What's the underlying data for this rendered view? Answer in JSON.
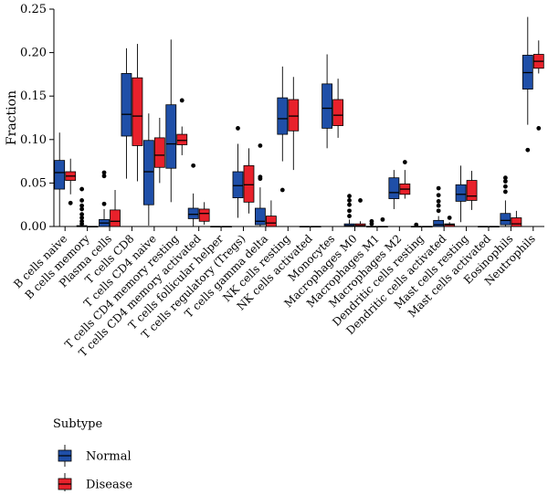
{
  "chart_data": {
    "type": "box",
    "ylabel": "Fraction",
    "xlabel": "",
    "ylim": [
      0,
      0.25
    ],
    "yticks": [
      0.0,
      0.05,
      0.1,
      0.15,
      0.2,
      0.25
    ],
    "ytick_labels": [
      "0.00",
      "0.05",
      "0.10",
      "0.15",
      "0.20",
      "0.25"
    ],
    "grid": false,
    "legend_position": "bottom-left",
    "categories": [
      "B cells naive",
      "B cells memory",
      "Plasma cells",
      "T cells CD8",
      "T cells CD4 naive",
      "T cells CD4 memory resting",
      "T cells CD4 memory activated",
      "T cells follicular helper",
      "T cells regulatory (Tregs)",
      "T cells gamma delta",
      "NK cells resting",
      "NK cells activated",
      "Monocytes",
      "Macrophages M0",
      "Macrophages M1",
      "Macrophages M2",
      "Dendritic cells resting",
      "Dendritic cells activated",
      "Mast cells resting",
      "Mast cells activated",
      "Eosinophils",
      "Neutrophils"
    ],
    "legend": {
      "title": "Subtype"
    },
    "series": [
      {
        "name": "Normal",
        "color": "#1f4fa8",
        "boxes": [
          {
            "min": 0.0,
            "q1": 0.043,
            "median": 0.062,
            "q3": 0.076,
            "max": 0.108,
            "outliers": []
          },
          {
            "min": 0.0,
            "q1": 0.0,
            "median": 0.0,
            "q3": 0.001,
            "max": 0.002,
            "outliers": [
              0.003,
              0.006,
              0.01,
              0.014,
              0.02,
              0.024,
              0.03,
              0.043
            ]
          },
          {
            "min": 0.0,
            "q1": 0.0,
            "median": 0.004,
            "q3": 0.008,
            "max": 0.02,
            "outliers": [
              0.026,
              0.058,
              0.062
            ]
          },
          {
            "min": 0.055,
            "q1": 0.104,
            "median": 0.129,
            "q3": 0.176,
            "max": 0.205,
            "outliers": []
          },
          {
            "min": 0.001,
            "q1": 0.025,
            "median": 0.063,
            "q3": 0.099,
            "max": 0.13,
            "outliers": []
          },
          {
            "min": 0.028,
            "q1": 0.067,
            "median": 0.095,
            "q3": 0.14,
            "max": 0.215,
            "outliers": []
          },
          {
            "min": 0.0,
            "q1": 0.009,
            "median": 0.014,
            "q3": 0.021,
            "max": 0.038,
            "outliers": [
              0.07
            ]
          },
          {
            "min": 0.0,
            "q1": 0.0,
            "median": 0.0,
            "q3": 0.0,
            "max": 0.0,
            "outliers": []
          },
          {
            "min": 0.01,
            "q1": 0.033,
            "median": 0.047,
            "q3": 0.063,
            "max": 0.095,
            "outliers": [
              0.113
            ]
          },
          {
            "min": 0.0,
            "q1": 0.002,
            "median": 0.006,
            "q3": 0.021,
            "max": 0.045,
            "outliers": [
              0.055,
              0.057,
              0.093
            ]
          },
          {
            "min": 0.075,
            "q1": 0.106,
            "median": 0.124,
            "q3": 0.148,
            "max": 0.184,
            "outliers": [
              0.042
            ]
          },
          {
            "min": 0.0,
            "q1": 0.0,
            "median": 0.0,
            "q3": 0.0,
            "max": 0.0,
            "outliers": []
          },
          {
            "min": 0.09,
            "q1": 0.113,
            "median": 0.136,
            "q3": 0.164,
            "max": 0.198,
            "outliers": []
          },
          {
            "min": 0.0,
            "q1": 0.0,
            "median": 0.001,
            "q3": 0.003,
            "max": 0.008,
            "outliers": [
              0.012,
              0.018,
              0.025,
              0.03,
              0.035
            ]
          },
          {
            "min": 0.0,
            "q1": 0.0,
            "median": 0.0,
            "q3": 0.0,
            "max": 0.0,
            "outliers": [
              0.003,
              0.006
            ]
          },
          {
            "min": 0.02,
            "q1": 0.032,
            "median": 0.039,
            "q3": 0.056,
            "max": 0.065,
            "outliers": []
          },
          {
            "min": 0.0,
            "q1": 0.0,
            "median": 0.0,
            "q3": 0.0,
            "max": 0.0,
            "outliers": [
              0.002
            ]
          },
          {
            "min": 0.0,
            "q1": 0.0,
            "median": 0.002,
            "q3": 0.007,
            "max": 0.012,
            "outliers": [
              0.018,
              0.024,
              0.029,
              0.036,
              0.044
            ]
          },
          {
            "min": 0.005,
            "q1": 0.029,
            "median": 0.037,
            "q3": 0.048,
            "max": 0.07,
            "outliers": []
          },
          {
            "min": 0.0,
            "q1": 0.0,
            "median": 0.0,
            "q3": 0.0,
            "max": 0.0,
            "outliers": []
          },
          {
            "min": 0.0,
            "q1": 0.002,
            "median": 0.007,
            "q3": 0.015,
            "max": 0.03,
            "outliers": [
              0.04,
              0.046,
              0.052,
              0.056
            ]
          },
          {
            "min": 0.117,
            "q1": 0.158,
            "median": 0.177,
            "q3": 0.197,
            "max": 0.241,
            "outliers": [
              0.088
            ]
          }
        ]
      },
      {
        "name": "Disease",
        "color": "#e8212b",
        "boxes": [
          {
            "min": 0.037,
            "q1": 0.053,
            "median": 0.058,
            "q3": 0.063,
            "max": 0.078,
            "outliers": [
              0.027
            ]
          },
          {
            "min": 0.0,
            "q1": 0.0,
            "median": 0.0,
            "q3": 0.0,
            "max": 0.0,
            "outliers": []
          },
          {
            "min": 0.0,
            "q1": 0.0,
            "median": 0.006,
            "q3": 0.019,
            "max": 0.042,
            "outliers": []
          },
          {
            "min": 0.052,
            "q1": 0.093,
            "median": 0.127,
            "q3": 0.171,
            "max": 0.21,
            "outliers": []
          },
          {
            "min": 0.05,
            "q1": 0.068,
            "median": 0.082,
            "q3": 0.102,
            "max": 0.125,
            "outliers": []
          },
          {
            "min": 0.082,
            "q1": 0.094,
            "median": 0.099,
            "q3": 0.106,
            "max": 0.115,
            "outliers": [
              0.145
            ]
          },
          {
            "min": 0.002,
            "q1": 0.006,
            "median": 0.015,
            "q3": 0.02,
            "max": 0.028,
            "outliers": []
          },
          {
            "min": 0.0,
            "q1": 0.0,
            "median": 0.0,
            "q3": 0.0,
            "max": 0.0,
            "outliers": []
          },
          {
            "min": 0.015,
            "q1": 0.028,
            "median": 0.048,
            "q3": 0.07,
            "max": 0.09,
            "outliers": []
          },
          {
            "min": 0.0,
            "q1": 0.0,
            "median": 0.004,
            "q3": 0.012,
            "max": 0.03,
            "outliers": []
          },
          {
            "min": 0.065,
            "q1": 0.11,
            "median": 0.127,
            "q3": 0.146,
            "max": 0.172,
            "outliers": []
          },
          {
            "min": 0.0,
            "q1": 0.0,
            "median": 0.0,
            "q3": 0.0,
            "max": 0.0,
            "outliers": []
          },
          {
            "min": 0.102,
            "q1": 0.116,
            "median": 0.128,
            "q3": 0.146,
            "max": 0.17,
            "outliers": []
          },
          {
            "min": 0.0,
            "q1": 0.0,
            "median": 0.001,
            "q3": 0.003,
            "max": 0.006,
            "outliers": [
              0.03
            ]
          },
          {
            "min": 0.0,
            "q1": 0.0,
            "median": 0.0,
            "q3": 0.0,
            "max": 0.0,
            "outliers": [
              0.008
            ]
          },
          {
            "min": 0.032,
            "q1": 0.037,
            "median": 0.043,
            "q3": 0.049,
            "max": 0.065,
            "outliers": [
              0.074
            ]
          },
          {
            "min": 0.0,
            "q1": 0.0,
            "median": 0.0,
            "q3": 0.0,
            "max": 0.0,
            "outliers": []
          },
          {
            "min": 0.0,
            "q1": 0.0,
            "median": 0.002,
            "q3": 0.003,
            "max": 0.005,
            "outliers": [
              0.01
            ]
          },
          {
            "min": 0.019,
            "q1": 0.03,
            "median": 0.035,
            "q3": 0.053,
            "max": 0.064,
            "outliers": []
          },
          {
            "min": 0.0,
            "q1": 0.0,
            "median": 0.0,
            "q3": 0.0,
            "max": 0.0,
            "outliers": []
          },
          {
            "min": 0.0,
            "q1": 0.0,
            "median": 0.003,
            "q3": 0.01,
            "max": 0.018,
            "outliers": []
          },
          {
            "min": 0.176,
            "q1": 0.182,
            "median": 0.19,
            "q3": 0.198,
            "max": 0.214,
            "outliers": [
              0.113
            ]
          }
        ]
      }
    ]
  }
}
